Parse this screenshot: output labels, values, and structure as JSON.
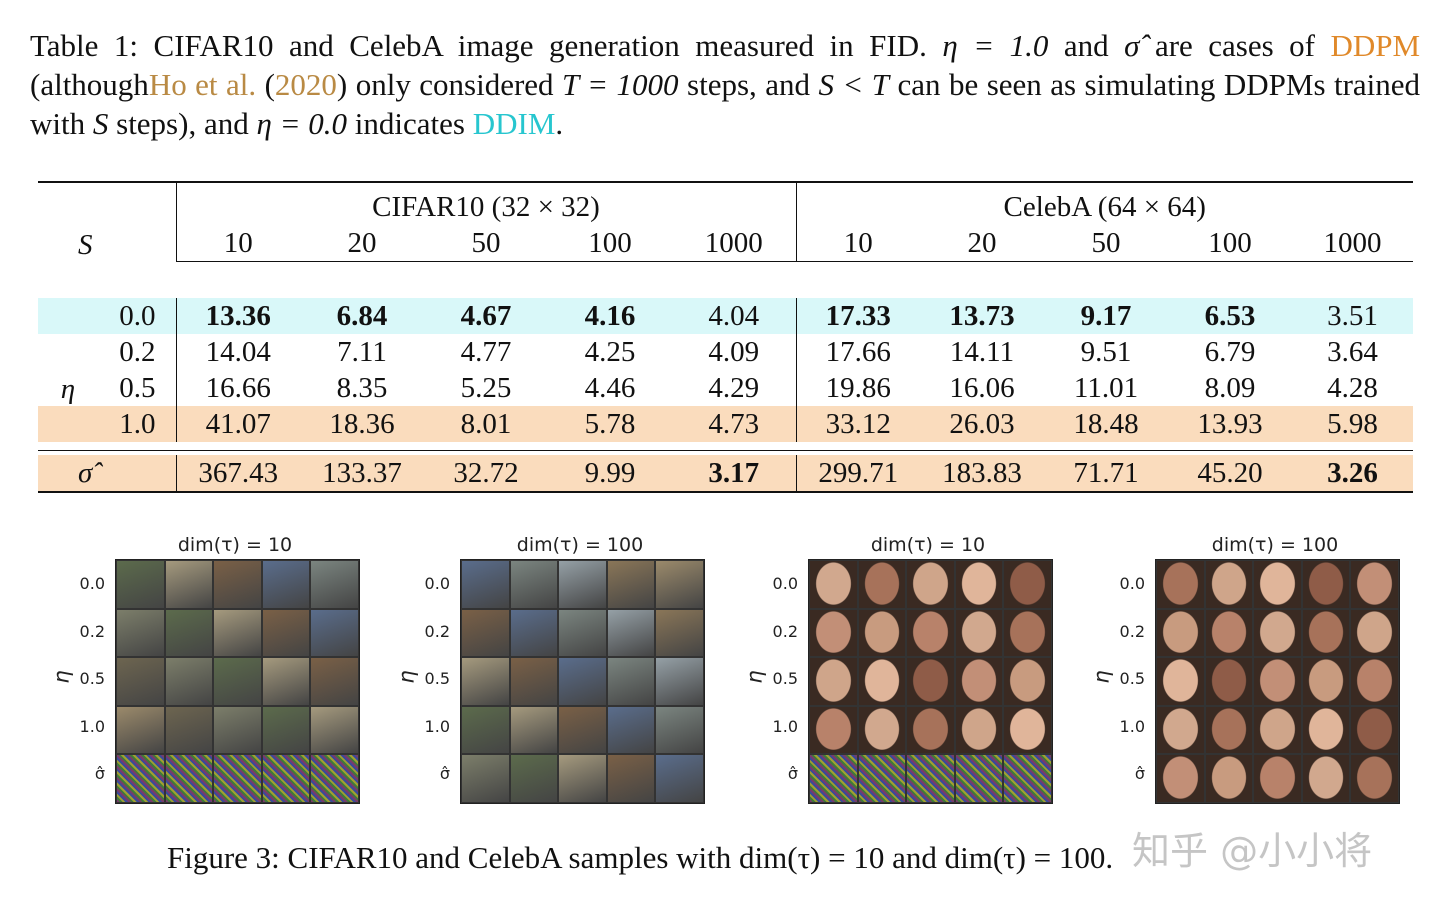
{
  "table_caption": {
    "prefix": "Table 1:",
    "part1": "CIFAR10 and CelebA image generation measured in FID.",
    "eta_eq": "η = 1.0",
    "and1": "and",
    "sigma": "σ̂",
    "are_cases": "are cases of",
    "ddpm": "DDPM",
    "although": "(although",
    "ho": "Ho et al.",
    "year": "2020",
    "only": ") only considered",
    "t_eq": "T = 1000",
    "steps_and": "steps, and",
    "s_lt_t": "S < T",
    "can_be": "can be seen as simulating DDPMs trained with",
    "s": "S",
    "steps_and2": "steps), and",
    "eta0": "η = 0.0",
    "indicates": "indicates",
    "ddim": "DDIM",
    "end": "."
  },
  "table": {
    "s_label": "S",
    "eta_label": "η",
    "group_cifar": "CIFAR10 (32 × 32)",
    "group_celeba": "CelebA (64 × 64)",
    "steps": [
      "10",
      "20",
      "50",
      "100",
      "1000"
    ],
    "rows": [
      {
        "eta": "0.0",
        "cifar": [
          "13.36",
          "6.84",
          "4.67",
          "4.16",
          "4.04"
        ],
        "celeba": [
          "17.33",
          "13.73",
          "9.17",
          "6.53",
          "3.51"
        ],
        "bold": [
          true,
          true,
          true,
          true,
          false,
          true,
          true,
          true,
          true,
          false
        ],
        "highlight": "cyan"
      },
      {
        "eta": "0.2",
        "cifar": [
          "14.04",
          "7.11",
          "4.77",
          "4.25",
          "4.09"
        ],
        "celeba": [
          "17.66",
          "14.11",
          "9.51",
          "6.79",
          "3.64"
        ],
        "bold": [
          false,
          false,
          false,
          false,
          false,
          false,
          false,
          false,
          false,
          false
        ],
        "highlight": ""
      },
      {
        "eta": "0.5",
        "cifar": [
          "16.66",
          "8.35",
          "5.25",
          "4.46",
          "4.29"
        ],
        "celeba": [
          "19.86",
          "16.06",
          "11.01",
          "8.09",
          "4.28"
        ],
        "bold": [
          false,
          false,
          false,
          false,
          false,
          false,
          false,
          false,
          false,
          false
        ],
        "highlight": ""
      },
      {
        "eta": "1.0",
        "cifar": [
          "41.07",
          "18.36",
          "8.01",
          "5.78",
          "4.73"
        ],
        "celeba": [
          "33.12",
          "26.03",
          "18.48",
          "13.93",
          "5.98"
        ],
        "bold": [
          false,
          false,
          false,
          false,
          false,
          false,
          false,
          false,
          false,
          false
        ],
        "highlight": "orange"
      }
    ],
    "sigma_row": {
      "label": "σ̂",
      "cifar": [
        "367.43",
        "133.37",
        "32.72",
        "9.99",
        "3.17"
      ],
      "celeba": [
        "299.71",
        "183.83",
        "71.71",
        "45.20",
        "3.26"
      ],
      "bold": [
        false,
        false,
        false,
        false,
        true,
        false,
        false,
        false,
        false,
        true
      ]
    }
  },
  "figure": {
    "panels": [
      {
        "title": "dim(τ) = 10",
        "dataset": "CIFAR10"
      },
      {
        "title": "dim(τ) = 100",
        "dataset": "CIFAR10"
      },
      {
        "title": "dim(τ) = 10",
        "dataset": "CelebA"
      },
      {
        "title": "dim(τ) = 100",
        "dataset": "CelebA"
      }
    ],
    "row_labels": [
      "0.0",
      "0.2",
      "0.5",
      "1.0",
      "σ̂"
    ],
    "y_axis": "η",
    "caption": "Figure 3: CIFAR10 and CelebA samples with dim(τ) = 10 and dim(τ) = 100."
  },
  "watermark": "知乎 @小小将"
}
